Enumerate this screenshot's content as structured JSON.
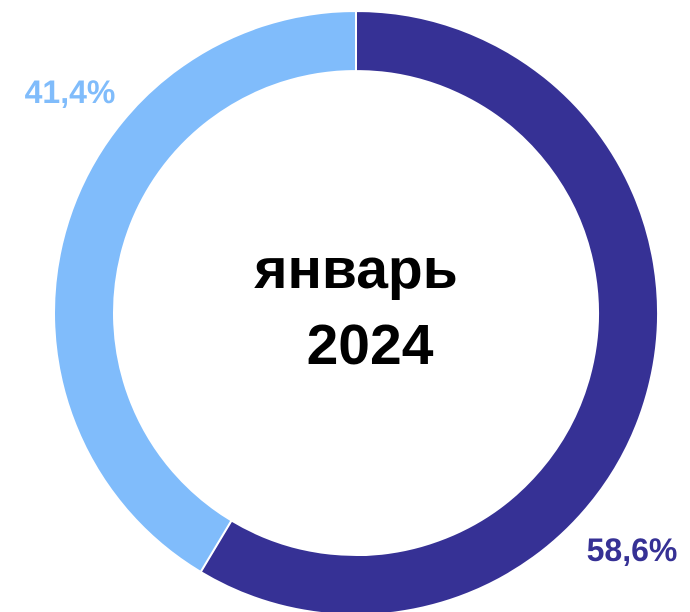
{
  "chart_data": {
    "type": "pie",
    "donut": true,
    "center_label": [
      "январь",
      "2024"
    ],
    "start": "top",
    "direction": "clockwise",
    "series": [
      {
        "categories": [
          "",
          ""
        ],
        "values": [
          58.6,
          41.4
        ],
        "labels": [
          "58,6%",
          "41,4%"
        ],
        "colors": [
          "#363195",
          "#80BCFB"
        ],
        "label_colors": [
          "#363195",
          "#80BCFB"
        ]
      }
    ],
    "legend": "none"
  }
}
